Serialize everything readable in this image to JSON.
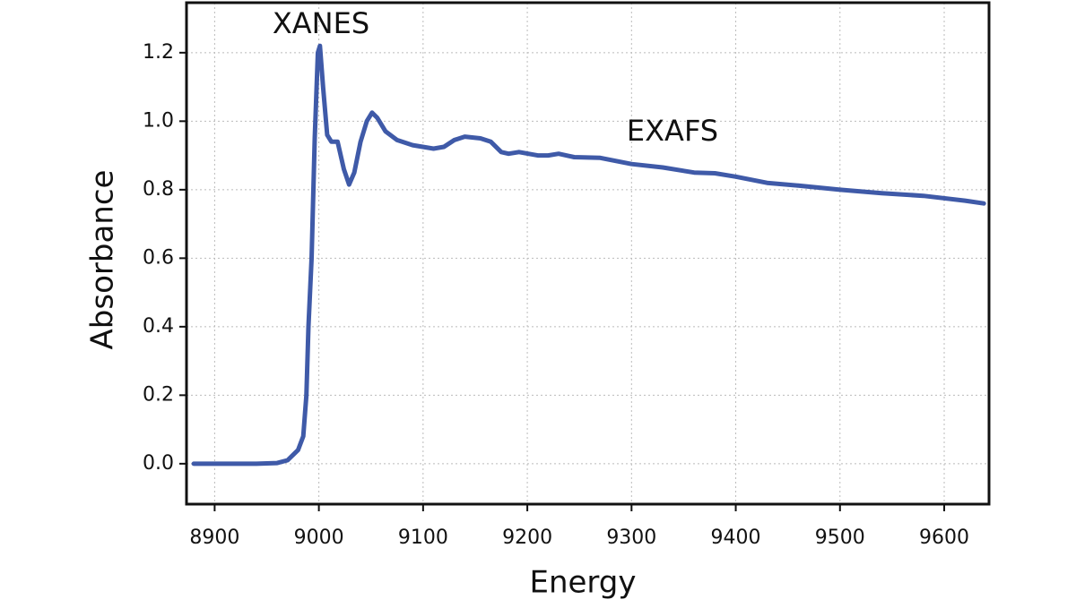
{
  "chart_data": {
    "type": "line",
    "x_label": "Energy",
    "y_label": "Absorbance",
    "annotations": [
      "XANES",
      "EXAFS"
    ],
    "color": "#3f5aa8",
    "x": [
      8880,
      8900,
      8920,
      8940,
      8960,
      8970,
      8980,
      8985,
      8988,
      8990,
      8993,
      8996,
      8999,
      9001,
      9004,
      9008,
      9012,
      9018,
      9024,
      9029,
      9034,
      9040,
      9046,
      9051,
      9056,
      9064,
      9075,
      9090,
      9110,
      9120,
      9130,
      9140,
      9155,
      9165,
      9175,
      9182,
      9192,
      9210,
      9220,
      9230,
      9245,
      9270,
      9300,
      9330,
      9360,
      9380,
      9400,
      9430,
      9460,
      9500,
      9540,
      9580,
      9620,
      9638
    ],
    "values": [
      0.0,
      0.0,
      0.0,
      0.0,
      0.002,
      0.01,
      0.04,
      0.08,
      0.2,
      0.4,
      0.6,
      0.95,
      1.2,
      1.22,
      1.1,
      0.96,
      0.94,
      0.94,
      0.86,
      0.815,
      0.85,
      0.94,
      1.0,
      1.025,
      1.01,
      0.97,
      0.945,
      0.93,
      0.92,
      0.925,
      0.945,
      0.955,
      0.95,
      0.94,
      0.91,
      0.905,
      0.91,
      0.9,
      0.9,
      0.905,
      0.895,
      0.893,
      0.875,
      0.865,
      0.85,
      0.848,
      0.838,
      0.82,
      0.812,
      0.8,
      0.79,
      0.782,
      0.768,
      0.76
    ],
    "xlim": [
      8873,
      9643
    ],
    "ylim": [
      -0.118,
      1.346
    ],
    "xticks": [
      8900,
      9000,
      9100,
      9200,
      9300,
      9400,
      9500,
      9600
    ],
    "yticks": [
      {
        "value": 0,
        "label": "0.0"
      },
      0.2,
      0.4,
      0.6,
      0.8,
      {
        "value": 1,
        "label": "1.0"
      },
      1.2
    ],
    "grid": true
  }
}
